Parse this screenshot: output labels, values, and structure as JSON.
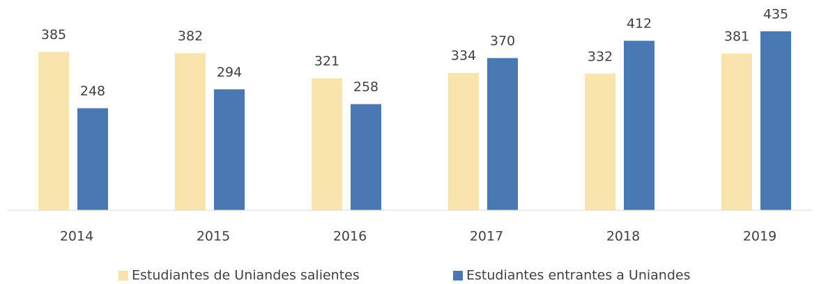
{
  "chart_data": {
    "type": "bar",
    "categories": [
      "2014",
      "2015",
      "2016",
      "2017",
      "2018",
      "2019"
    ],
    "series": [
      {
        "name": "Estudiantes de Uniandes salientes",
        "color": "#fae4ae",
        "values": [
          385,
          382,
          321,
          334,
          332,
          381
        ]
      },
      {
        "name": "Estudiantes entrantes a Uniandes",
        "color": "#4a78b3",
        "values": [
          248,
          294,
          258,
          370,
          412,
          435
        ]
      }
    ],
    "legend": "bottom"
  }
}
